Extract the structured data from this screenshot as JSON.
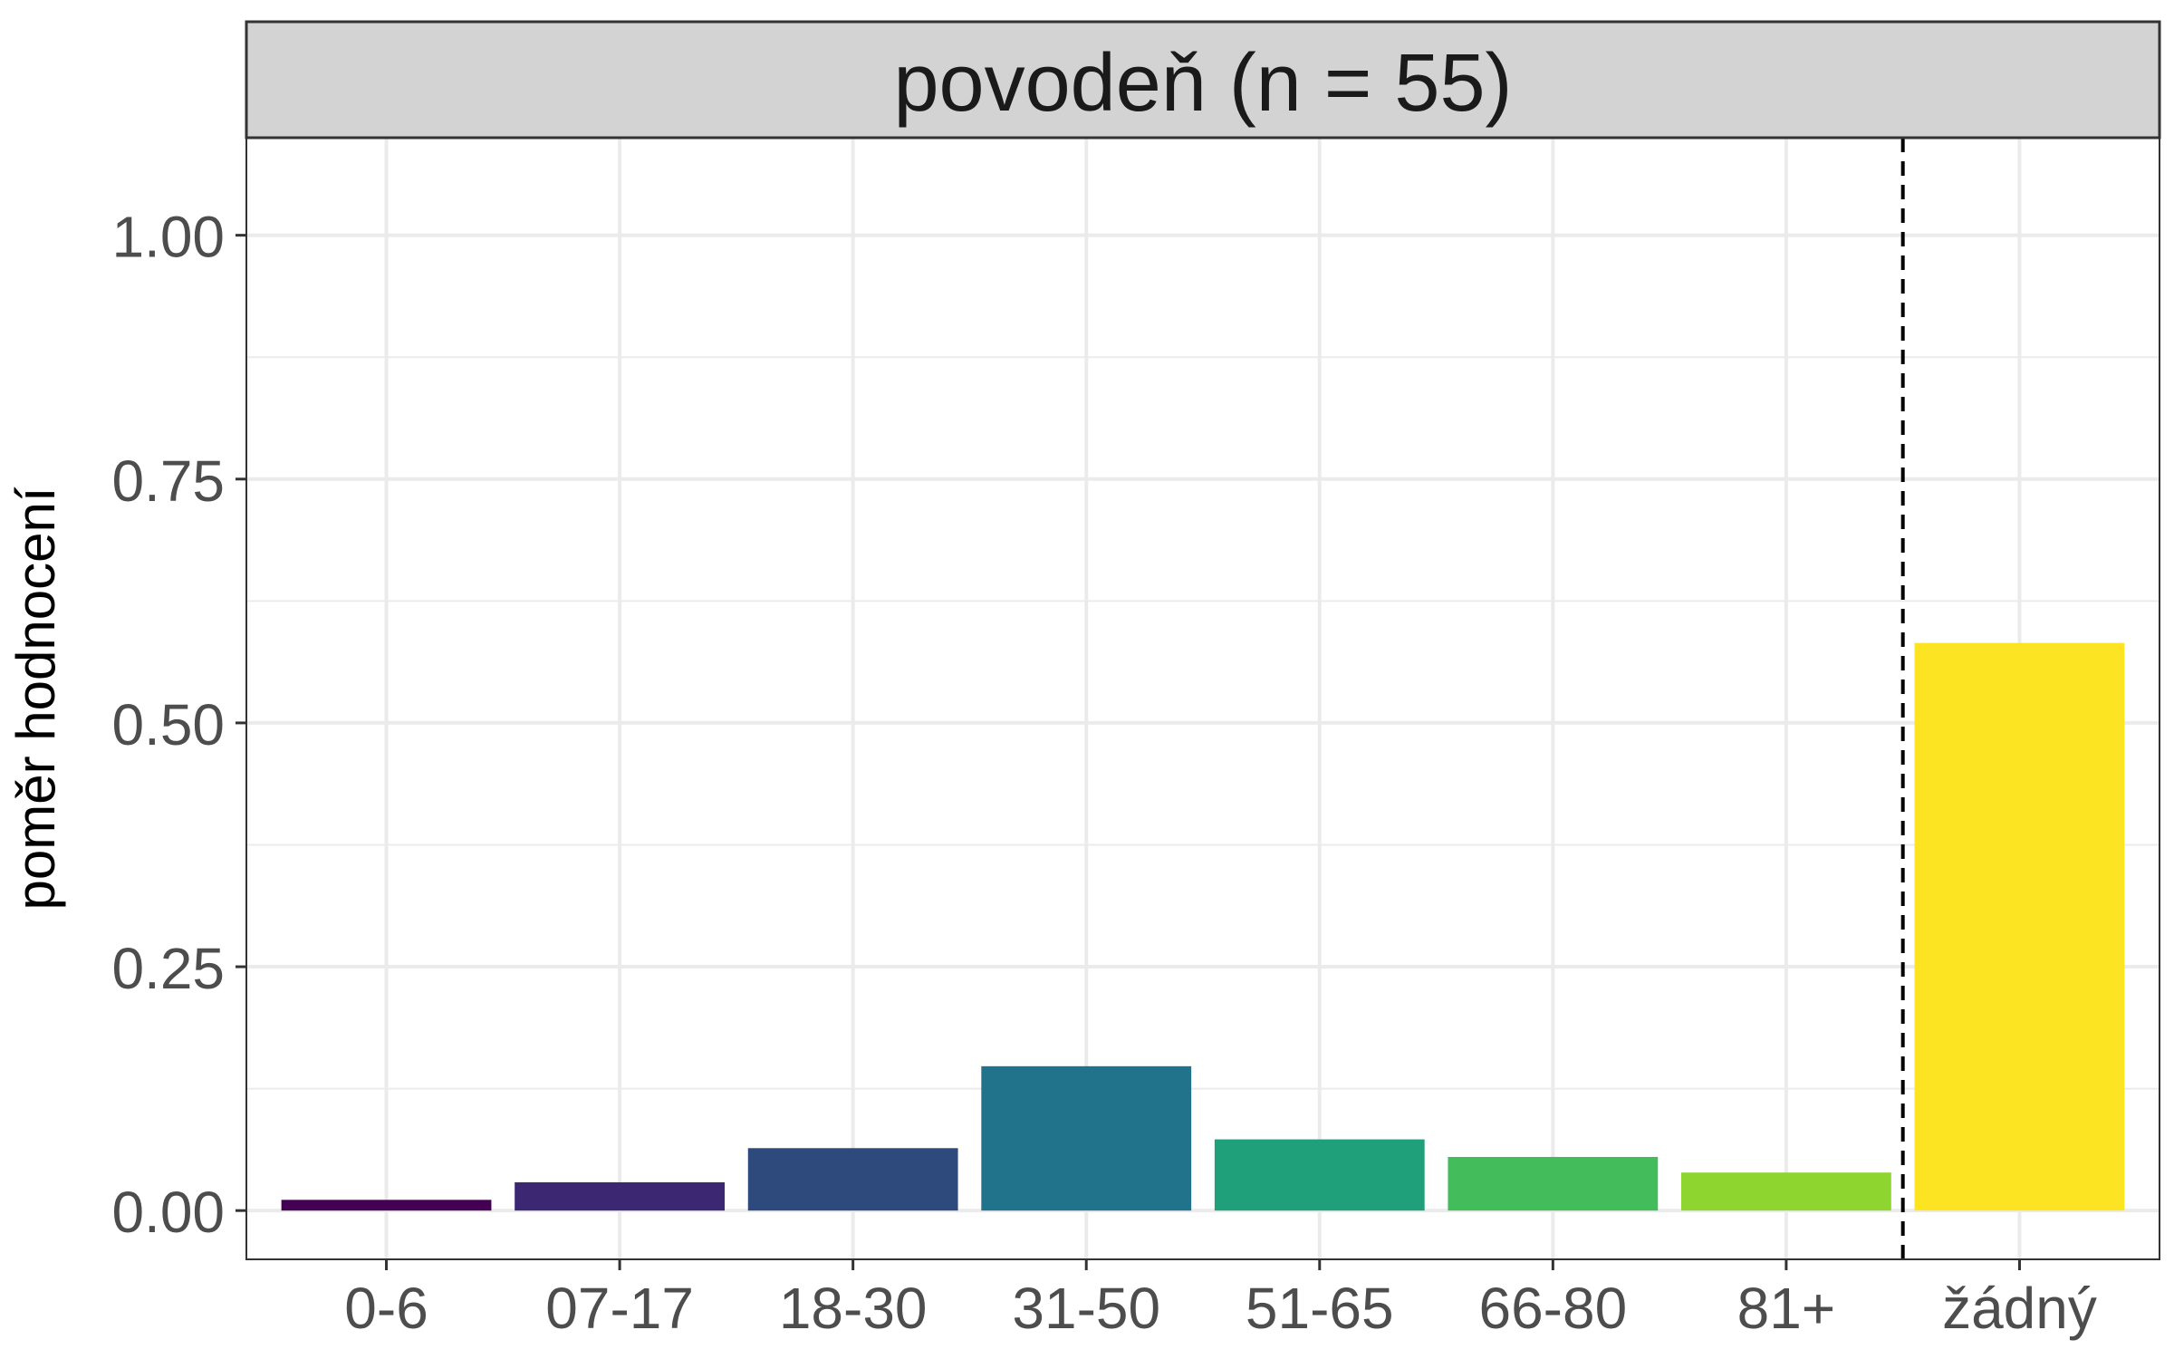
{
  "chart_data": {
    "type": "bar",
    "facet_title": "povodeň (n = 55)",
    "xlabel": "",
    "ylabel": "poměr hodnocení",
    "categories": [
      "0-6",
      "07-17",
      "18-30",
      "31-50",
      "51-65",
      "66-80",
      "81+",
      "žádný"
    ],
    "values": [
      0.011,
      0.029,
      0.064,
      0.148,
      0.073,
      0.055,
      0.039,
      0.582
    ],
    "colors": [
      "#440154",
      "#3b2772",
      "#2e4a7c",
      "#21738c",
      "#1f9f7a",
      "#43bd5b",
      "#8fd52f",
      "#fde423"
    ],
    "ylim": [
      -0.05,
      1.1
    ],
    "yticks": [
      "0.00",
      "0.25",
      "0.50",
      "0.75",
      "1.00"
    ],
    "ytick_values": [
      0,
      0.25,
      0.5,
      0.75,
      1.0
    ],
    "reference_line": {
      "between_categories": [
        "81+",
        "žádný"
      ],
      "style": "dashed"
    },
    "grid": true,
    "theme": {
      "strip_fill": "#d3d3d3",
      "grid_color": "#ebebeb",
      "panel_border": "#333333"
    }
  }
}
